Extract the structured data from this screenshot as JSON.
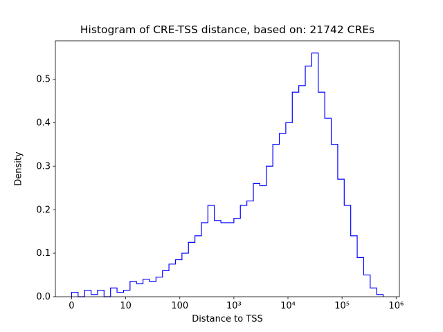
{
  "chart_data": {
    "type": "histogram",
    "style": "step-outline",
    "title": "Histogram of CRE-TSS distance, based on: 21742 CREs",
    "xlabel": "Distance to TSS",
    "ylabel": "Density",
    "n_cres": 21742,
    "line_color": "#0000ff",
    "background_color": "#ffffff",
    "x_scale": "log10(distance), linearized near zero",
    "grid": false,
    "legend": "none",
    "x_axis": {
      "lim_log10": [
        -0.3,
        6.06
      ],
      "ticks": [
        {
          "pos": 0,
          "label": "0"
        },
        {
          "pos": 1,
          "label": "10"
        },
        {
          "pos": 2,
          "label": "100"
        },
        {
          "pos": 3,
          "label": "10³"
        },
        {
          "pos": 4,
          "label": "10⁴"
        },
        {
          "pos": 5,
          "label": "10⁵"
        },
        {
          "pos": 6,
          "label": "10⁶"
        }
      ]
    },
    "y_axis": {
      "lim": [
        0,
        0.588
      ],
      "ticks": [
        0.0,
        0.1,
        0.2,
        0.3,
        0.4,
        0.5
      ]
    },
    "bins": {
      "start_log10": 0,
      "width_log10": 0.12,
      "count": 48,
      "units": "log10 of distance to TSS (bp)"
    },
    "densities": [
      0.01,
      0.0,
      0.015,
      0.005,
      0.015,
      0.0,
      0.02,
      0.01,
      0.015,
      0.035,
      0.03,
      0.04,
      0.035,
      0.045,
      0.06,
      0.075,
      0.085,
      0.1,
      0.125,
      0.14,
      0.17,
      0.21,
      0.175,
      0.17,
      0.17,
      0.18,
      0.21,
      0.22,
      0.26,
      0.255,
      0.3,
      0.35,
      0.375,
      0.4,
      0.47,
      0.485,
      0.53,
      0.56,
      0.47,
      0.41,
      0.35,
      0.27,
      0.21,
      0.14,
      0.09,
      0.05,
      0.02,
      0.005
    ]
  }
}
